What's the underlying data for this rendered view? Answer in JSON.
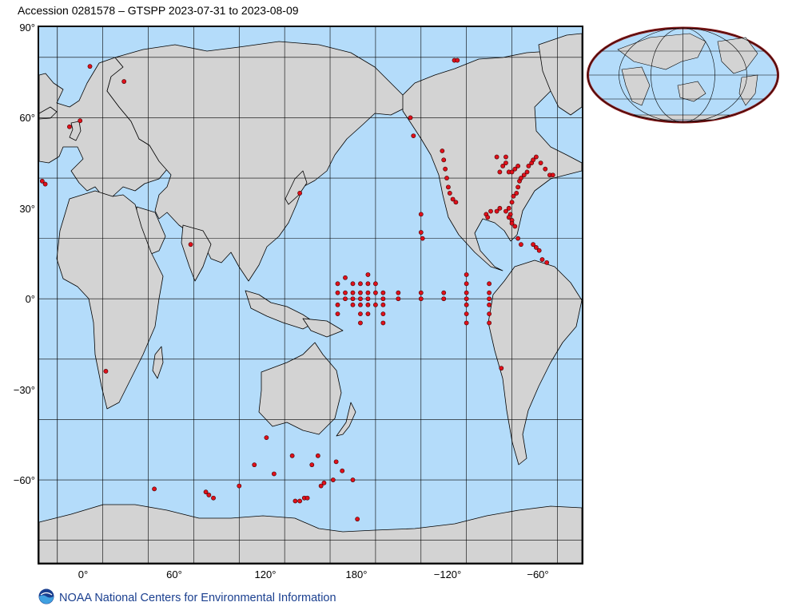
{
  "title": "Accession 0281578 – GTSPP 2023-07-31 to 2023-08-09",
  "footer": {
    "logo_icon": "noaa-logo-icon",
    "text": "NOAA National Centers for Environmental Information"
  },
  "colors": {
    "ocean": "#b4dcfa",
    "land": "#d3d3d3",
    "coast": "#000000",
    "grid": "#000000",
    "observation": "#e0101a",
    "inset_border": "#8b1a1a"
  },
  "map": {
    "projection": "equirectangular",
    "center_longitude": 180,
    "lat_ticks": [
      "90°",
      "60°",
      "30°",
      "0°",
      "−30°",
      "−60°"
    ],
    "lon_ticks": [
      "0°",
      "60°",
      "120°",
      "180°",
      "−120°",
      "−60°"
    ],
    "observations": [
      [
        1.5,
        77
      ],
      [
        -12,
        57
      ],
      [
        -5,
        59
      ],
      [
        -30,
        39
      ],
      [
        -28,
        38
      ],
      [
        24,
        72
      ],
      [
        68,
        18
      ],
      [
        12,
        -24
      ],
      [
        44,
        -63
      ],
      [
        78,
        -64
      ],
      [
        80,
        -65
      ],
      [
        83,
        -66
      ],
      [
        100,
        -62
      ],
      [
        110,
        -55
      ],
      [
        118,
        -46
      ],
      [
        123,
        -58
      ],
      [
        135,
        -52
      ],
      [
        137,
        -67
      ],
      [
        140,
        -67
      ],
      [
        143,
        -66
      ],
      [
        145,
        -66
      ],
      [
        148,
        -55
      ],
      [
        152,
        -52
      ],
      [
        154,
        -62
      ],
      [
        156,
        -61
      ],
      [
        162,
        -60
      ],
      [
        164,
        -54
      ],
      [
        168,
        -57
      ],
      [
        175,
        -60
      ],
      [
        178,
        -73
      ],
      [
        140,
        35
      ],
      [
        -147,
        60
      ],
      [
        -145,
        54
      ],
      [
        -140,
        28
      ],
      [
        -140,
        22
      ],
      [
        -139,
        20
      ],
      [
        -118,
        79
      ],
      [
        -116,
        79
      ],
      [
        -126,
        49
      ],
      [
        -125,
        46
      ],
      [
        -124,
        43
      ],
      [
        -123,
        40
      ],
      [
        -122,
        37
      ],
      [
        -121,
        35
      ],
      [
        -119,
        33
      ],
      [
        -117,
        32
      ],
      [
        -80,
        26
      ],
      [
        -81,
        28
      ],
      [
        -82,
        30
      ],
      [
        -80,
        32
      ],
      [
        -79,
        34
      ],
      [
        -77,
        35
      ],
      [
        -76,
        37
      ],
      [
        -75,
        39
      ],
      [
        -74,
        40
      ],
      [
        -72,
        41
      ],
      [
        -70,
        42
      ],
      [
        -69,
        44
      ],
      [
        -67,
        45
      ],
      [
        -66,
        46
      ],
      [
        -64,
        47
      ],
      [
        -61,
        45
      ],
      [
        -58,
        43
      ],
      [
        -55,
        41
      ],
      [
        -53,
        41
      ],
      [
        -84,
        29
      ],
      [
        -88,
        30
      ],
      [
        -90,
        29
      ],
      [
        -94,
        29
      ],
      [
        -97,
        28
      ],
      [
        -96,
        27
      ],
      [
        -82,
        27
      ],
      [
        -80,
        25
      ],
      [
        -78,
        24
      ],
      [
        -76,
        20
      ],
      [
        -74,
        18
      ],
      [
        -66,
        18
      ],
      [
        -64,
        17
      ],
      [
        -62,
        16
      ],
      [
        -60,
        13
      ],
      [
        -57,
        12
      ],
      [
        -86,
        44
      ],
      [
        -84,
        45
      ],
      [
        -82,
        42
      ],
      [
        -80,
        42
      ],
      [
        -78,
        43
      ],
      [
        -76,
        44
      ],
      [
        -88,
        42
      ],
      [
        -90,
        47
      ],
      [
        -84,
        47
      ],
      [
        -87,
        -23
      ],
      [
        165,
        5
      ],
      [
        165,
        2
      ],
      [
        165,
        -2
      ],
      [
        165,
        -5
      ],
      [
        170,
        7
      ],
      [
        170,
        2
      ],
      [
        170,
        0
      ],
      [
        175,
        5
      ],
      [
        175,
        2
      ],
      [
        175,
        0
      ],
      [
        175,
        -2
      ],
      [
        180,
        5
      ],
      [
        180,
        2
      ],
      [
        180,
        0
      ],
      [
        180,
        -2
      ],
      [
        180,
        -5
      ],
      [
        180,
        -8
      ],
      [
        -175,
        8
      ],
      [
        -175,
        5
      ],
      [
        -175,
        2
      ],
      [
        -175,
        0
      ],
      [
        -175,
        -2
      ],
      [
        -175,
        -5
      ],
      [
        -170,
        5
      ],
      [
        -170,
        2
      ],
      [
        -170,
        -2
      ],
      [
        -165,
        2
      ],
      [
        -165,
        0
      ],
      [
        -165,
        -2
      ],
      [
        -165,
        -5
      ],
      [
        -165,
        -8
      ],
      [
        -155,
        2
      ],
      [
        -155,
        0
      ],
      [
        -140,
        2
      ],
      [
        -140,
        0
      ],
      [
        -125,
        2
      ],
      [
        -125,
        0
      ],
      [
        -110,
        8
      ],
      [
        -110,
        5
      ],
      [
        -110,
        2
      ],
      [
        -110,
        0
      ],
      [
        -110,
        -2
      ],
      [
        -110,
        -5
      ],
      [
        -110,
        -8
      ],
      [
        -95,
        5
      ],
      [
        -95,
        2
      ],
      [
        -95,
        0
      ],
      [
        -95,
        -2
      ],
      [
        -95,
        -5
      ],
      [
        -95,
        -8
      ]
    ]
  }
}
